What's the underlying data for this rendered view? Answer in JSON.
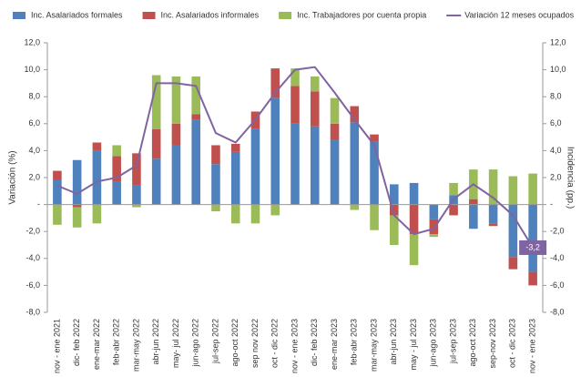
{
  "chart_data": {
    "type": "bar-line",
    "y_label": "Variación (%)",
    "y2_label": "Incidencia (pp.)",
    "categories": [
      "nov - ene 2021",
      "dic- feb 2022",
      "ene-mar 2022",
      "feb-abr 2022",
      "mar-may 2022",
      "abr-jun 2022",
      "may- jul 2022",
      "jun-ago 2022",
      "jul-sep 2022",
      "ago-oct 2022",
      "sep nov 2022",
      "oct - dic 2022",
      "nov - ene 2023",
      "dic- feb 2023",
      "ene-mar 2023",
      "feb-abr 2023",
      "mar-may 2023",
      "abr-jun 2023",
      "may - jul 2023",
      "jun-ago 2023",
      "jul-sep 2023",
      "ago-oct 2023",
      "sep-nov 2023",
      "oct - dic 2023",
      "nov - ene 2023"
    ],
    "series": [
      {
        "name": "Inc. Asalariados formales",
        "color": "#4f81bd",
        "kind": "bar",
        "axis": "y2",
        "values": [
          1.8,
          3.3,
          4.0,
          1.7,
          1.4,
          3.4,
          4.4,
          6.3,
          3.0,
          3.9,
          5.6,
          7.9,
          6.0,
          5.8,
          4.8,
          6.1,
          4.7,
          1.5,
          1.6,
          -1.1,
          0.7,
          -1.8,
          -1.4,
          -3.9,
          -5.0
        ]
      },
      {
        "name": "Inc. Asalariados informales",
        "color": "#c0504d",
        "kind": "bar",
        "axis": "y2",
        "values": [
          0.7,
          -0.2,
          0.6,
          1.9,
          2.4,
          2.2,
          1.6,
          0.4,
          1.4,
          0.6,
          1.3,
          2.2,
          2.8,
          2.6,
          1.2,
          1.2,
          0.5,
          -0.8,
          -2.2,
          -1.1,
          -0.8,
          0.4,
          -0.2,
          -0.9,
          -1.0
        ]
      },
      {
        "name": "Inc. Trabajadores por cuenta propia",
        "color": "#9bbb59",
        "kind": "bar",
        "axis": "y2",
        "values": [
          -1.5,
          -1.5,
          -1.4,
          0.8,
          -0.2,
          4.0,
          3.5,
          2.8,
          -0.5,
          -1.4,
          -1.4,
          -0.8,
          1.3,
          1.1,
          1.9,
          -0.4,
          -1.9,
          -2.2,
          -2.3,
          -0.2,
          0.9,
          2.2,
          2.6,
          2.1,
          2.3
        ]
      },
      {
        "name": "Variación 12 meses ocupados",
        "color": "#8064a2",
        "kind": "line",
        "values": [
          1.4,
          0.8,
          1.7,
          2.0,
          2.9,
          9.0,
          9.0,
          8.8,
          5.3,
          4.6,
          6.3,
          8.3,
          10.0,
          10.2,
          8.3,
          6.3,
          4.4,
          -0.8,
          -2.2,
          -1.8,
          0.4,
          1.5,
          0.5,
          -0.8,
          -3.2
        ],
        "value_labels": [
          null,
          null,
          null,
          null,
          null,
          null,
          null,
          null,
          null,
          null,
          null,
          null,
          null,
          null,
          null,
          null,
          null,
          null,
          null,
          null,
          null,
          null,
          null,
          null,
          "-3,2"
        ]
      }
    ],
    "ylim": [
      -8,
      12
    ],
    "yticks": [
      {
        "value": -8,
        "label": "-8,0"
      },
      {
        "value": -6,
        "label": "-6,0"
      },
      {
        "value": -4,
        "label": "-4,0"
      },
      {
        "value": -2,
        "label": "-2,0"
      },
      {
        "value": 0,
        "label": "-"
      },
      {
        "value": 2,
        "label": "2,0"
      },
      {
        "value": 4,
        "label": "4,0"
      },
      {
        "value": 6,
        "label": "6,0"
      },
      {
        "value": 8,
        "label": "8,0"
      },
      {
        "value": 10,
        "label": "10,0"
      },
      {
        "value": 12,
        "label": "12,0"
      }
    ],
    "y2lim": [
      -8,
      12
    ],
    "y2ticks": [
      {
        "value": -8,
        "label": "-8,0"
      },
      {
        "value": -6,
        "label": "-6,0"
      },
      {
        "value": -4,
        "label": "-4,0"
      },
      {
        "value": -2,
        "label": "-2,0"
      },
      {
        "value": 0,
        "label": "-"
      },
      {
        "value": 2,
        "label": "2,0"
      },
      {
        "value": 4,
        "label": "4,0"
      },
      {
        "value": 6,
        "label": "6,0"
      },
      {
        "value": 8,
        "label": "8,0"
      },
      {
        "value": 10,
        "label": "10,0"
      },
      {
        "value": 12,
        "label": "12,0"
      }
    ],
    "grid": false,
    "legend": "top"
  }
}
